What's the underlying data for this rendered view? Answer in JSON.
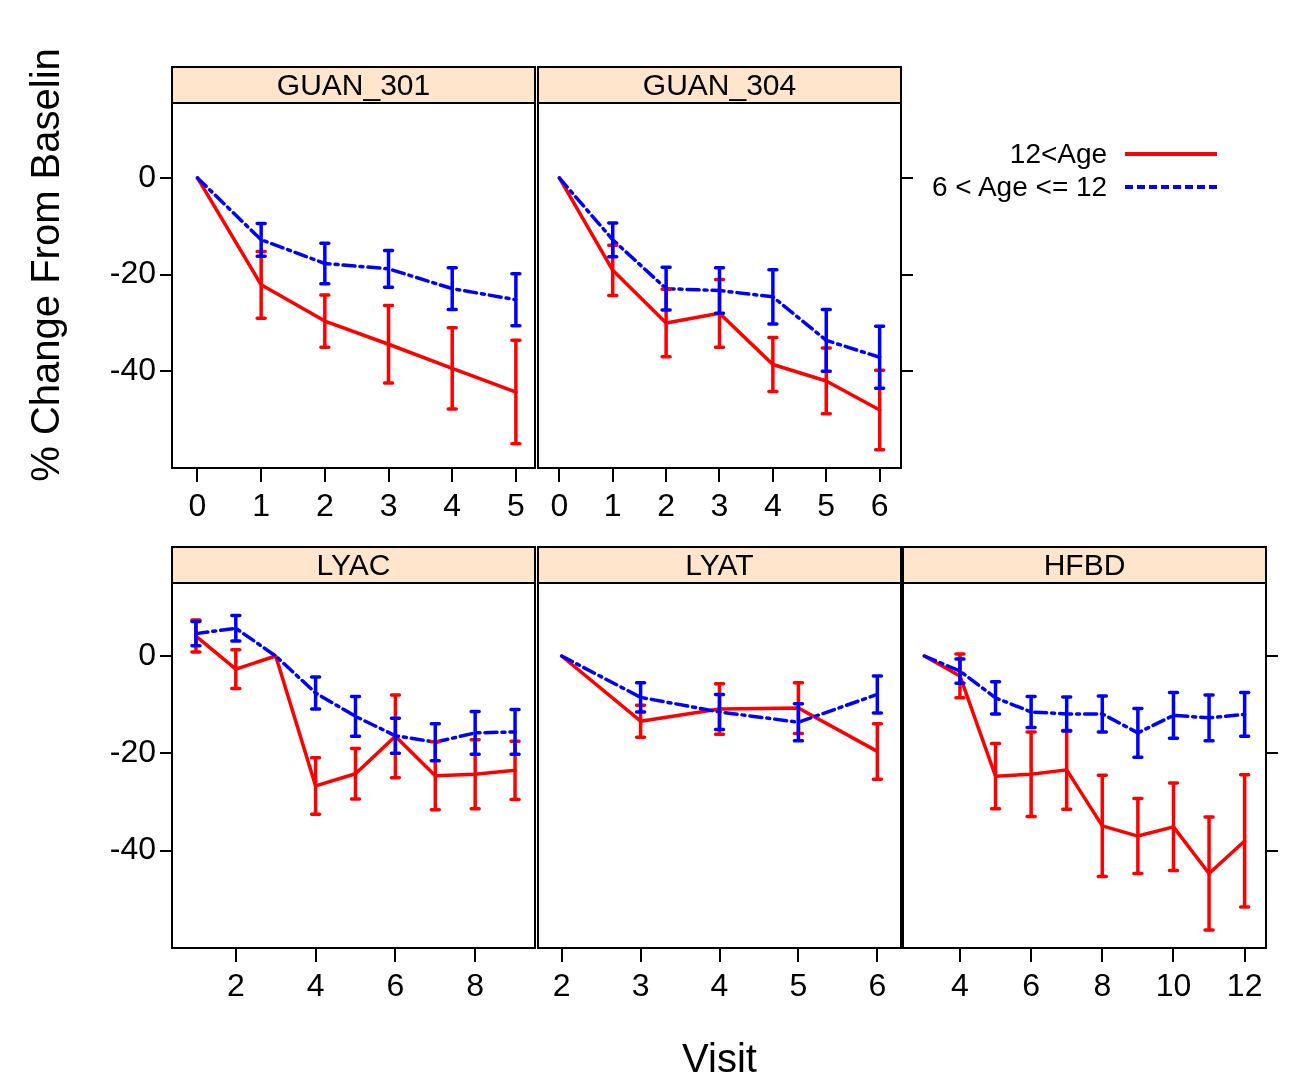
{
  "chart_data": [
    {
      "type": "line",
      "title": "GUAN_301",
      "ylabel": "% Change From Baselin",
      "x": [
        0,
        1,
        2,
        3,
        4,
        5
      ],
      "xlim": [
        -0.4,
        5.3
      ],
      "xticks": [
        0,
        1,
        2,
        3,
        4,
        5
      ],
      "ylim": [
        -60,
        15.5
      ],
      "yticks": [
        0,
        -20,
        -40
      ],
      "series": [
        {
          "color": "#ff0000",
          "line_style": "solid",
          "values": [
            0,
            -22.1,
            -29.6,
            -34.4,
            -39.4,
            -44.3
          ],
          "errors": [
            null,
            6.9,
            5.4,
            8.0,
            8.4,
            10.7
          ]
        },
        {
          "color": "#0000ff",
          "line_style": "dashed",
          "values": [
            0,
            -12.8,
            -17.7,
            -18.8,
            -22.9,
            -25.2
          ],
          "errors": [
            null,
            3.4,
            4.2,
            3.8,
            4.3,
            5.4
          ]
        }
      ]
    },
    {
      "type": "line",
      "title": "GUAN_304",
      "x": [
        0,
        1,
        2,
        3,
        4,
        5,
        6
      ],
      "xlim": [
        -0.4,
        6.4
      ],
      "xticks": [
        0,
        1,
        2,
        3,
        4,
        5,
        6
      ],
      "ylim": [
        -60,
        15.5
      ],
      "yticks": [
        0,
        -20,
        -40
      ],
      "tick_labels": "x",
      "legend": "right",
      "series": [
        {
          "name": "12<Age",
          "color": "#ff0000",
          "line_style": "solid",
          "values": [
            0,
            -19.1,
            -30.0,
            -28.0,
            -38.6,
            -42.0,
            -48.0
          ],
          "errors": [
            null,
            5.2,
            7.0,
            7.0,
            5.6,
            6.8,
            8.2
          ]
        },
        {
          "name": "6 < Age <= 12",
          "color": "#0000ff",
          "line_style": "dashed",
          "values": [
            0,
            -12.8,
            -22.9,
            -23.3,
            -24.6,
            -33.6,
            -37.1
          ],
          "errors": [
            null,
            3.5,
            4.4,
            4.7,
            5.6,
            6.4,
            6.4
          ]
        }
      ]
    },
    {
      "type": "line",
      "title": "LYAC",
      "x": [
        1,
        2,
        3,
        4,
        5,
        6,
        7,
        8,
        9
      ],
      "xlim": [
        0.4,
        9.5
      ],
      "xticks": [
        2,
        4,
        6,
        8
      ],
      "ylim": [
        -60,
        15
      ],
      "yticks": [
        0,
        -20,
        -40
      ],
      "series": [
        {
          "color": "#ff0000",
          "line_style": "solid",
          "values": [
            4.1,
            -2.7,
            0,
            -26.7,
            -24.2,
            -16.5,
            -24.6,
            -24.3,
            -23.5
          ],
          "errors": [
            3.3,
            4.0,
            null,
            5.8,
            5.2,
            8.5,
            7.0,
            7.1,
            6.0
          ]
        },
        {
          "color": "#0000ff",
          "line_style": "dashed",
          "values": [
            4.6,
            5.7,
            0,
            -7.6,
            -12.4,
            -16.4,
            -17.7,
            -15.8,
            -15.6
          ],
          "errors": [
            2.5,
            2.6,
            null,
            3.3,
            4.1,
            3.6,
            3.8,
            4.4,
            4.6
          ]
        }
      ]
    },
    {
      "type": "line",
      "title": "LYAT",
      "xlabel": "Visit",
      "x": [
        2,
        3,
        4,
        5,
        6
      ],
      "xlim": [
        1.7,
        6.3
      ],
      "xticks": [
        2,
        3,
        4,
        5,
        6
      ],
      "ylim": [
        -60,
        15
      ],
      "tick_labels": "x",
      "series": [
        {
          "color": "#ff0000",
          "line_style": "solid",
          "values": [
            0,
            -13.4,
            -10.9,
            -10.7,
            -19.6
          ],
          "errors": [
            null,
            3.3,
            5.2,
            5.2,
            5.7
          ]
        },
        {
          "color": "#0000ff",
          "line_style": "dashed",
          "values": [
            0,
            -8.5,
            -11.5,
            -13.6,
            -7.9
          ],
          "errors": [
            null,
            3.0,
            3.6,
            3.8,
            3.8
          ]
        }
      ]
    },
    {
      "type": "line",
      "title": "HFBD",
      "x": [
        3,
        4,
        5,
        6,
        7,
        8,
        9,
        10,
        11,
        12
      ],
      "xlim": [
        2.4,
        12.6
      ],
      "xticks": [
        4,
        6,
        8,
        10,
        12
      ],
      "ylim": [
        -60,
        15
      ],
      "yticks": [
        0,
        -20,
        -40
      ],
      "tick_labels": "x",
      "series": [
        {
          "color": "#ff0000",
          "line_style": "solid",
          "values": [
            0,
            -4.1,
            -24.7,
            -24.3,
            -23.4,
            -34.9,
            -37.0,
            -35.1,
            -44.7,
            -38.0
          ],
          "errors": [
            null,
            4.5,
            6.7,
            8.7,
            8.1,
            10.4,
            7.7,
            9.0,
            11.6,
            13.6
          ]
        },
        {
          "color": "#0000ff",
          "line_style": "dashed",
          "values": [
            0,
            -3.1,
            -8.6,
            -11.5,
            -11.9,
            -11.9,
            -15.8,
            -12.2,
            -12.7,
            -12.0
          ],
          "errors": [
            null,
            2.5,
            3.3,
            3.2,
            3.5,
            3.7,
            5.0,
            4.7,
            4.7,
            4.5
          ]
        }
      ]
    }
  ]
}
